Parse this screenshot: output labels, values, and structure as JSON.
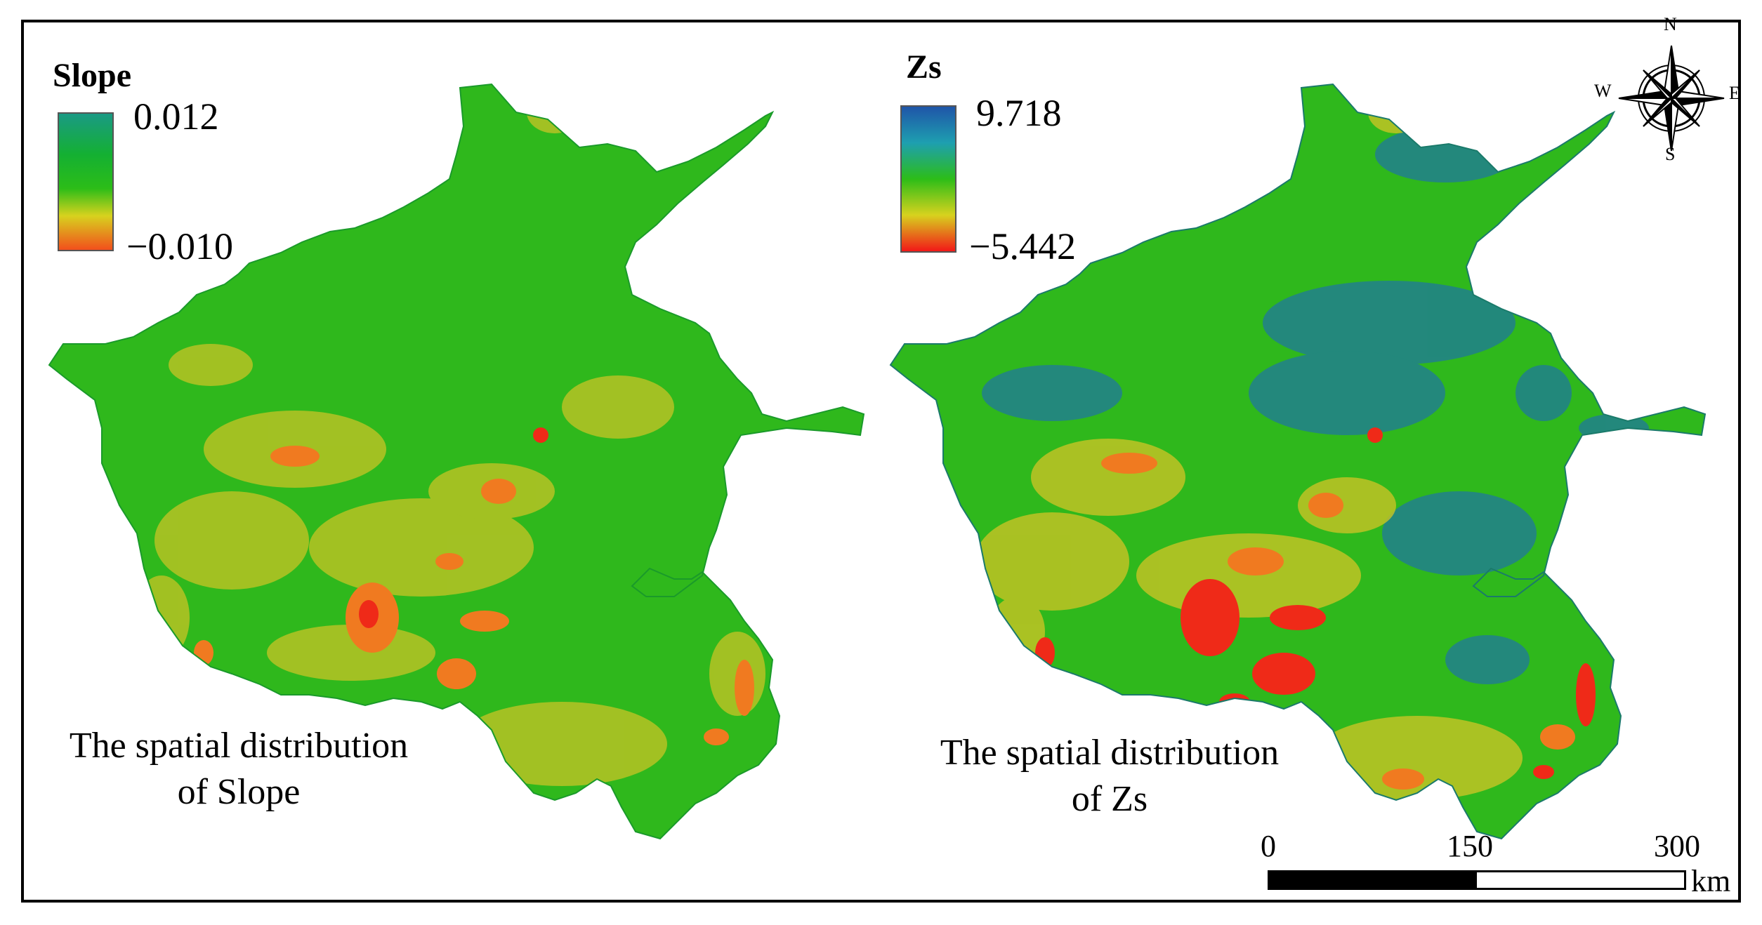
{
  "left_panel": {
    "legend_title": "Slope",
    "legend_max": "0.012",
    "legend_min": "−0.010",
    "caption_line1": "The spatial distribution",
    "caption_line2": "of Slope",
    "ramp_colors": [
      "#1a9a84",
      "#14b032",
      "#2cbd18",
      "#d7d21e",
      "#f24f1c"
    ]
  },
  "right_panel": {
    "legend_title": "Zs",
    "legend_max": "9.718",
    "legend_min": "−5.442",
    "caption_line1": "The spatial distribution",
    "caption_line2": "of Zs",
    "ramp_colors": [
      "#1f55a8",
      "#1e9fb0",
      "#2cbd18",
      "#d7d21e",
      "#f21818"
    ]
  },
  "compass": {
    "north": "N",
    "south": "S",
    "east": "E",
    "west": "W"
  },
  "scale_bar": {
    "tick_0": "0",
    "tick_1": "150",
    "tick_2": "300",
    "unit": "km"
  },
  "colors": {
    "green": "#2fb81c",
    "yellow": "#c9c425",
    "orange": "#f07a20",
    "red": "#ef2a18",
    "blue": "#1d6fb0"
  }
}
